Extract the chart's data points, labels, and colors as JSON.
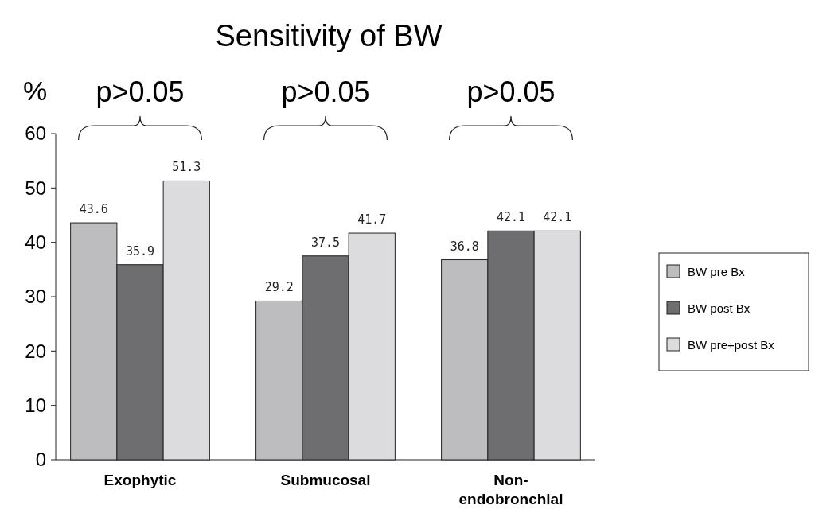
{
  "chart_data": {
    "type": "bar",
    "title": "Sensitivity of BW",
    "ylabel": "%",
    "categories": [
      "Exophytic",
      "Submucosal",
      "Non-endobronchial"
    ],
    "series": [
      {
        "name": "BW pre Bx",
        "color": "#bdbdbf",
        "values": [
          43.6,
          29.2,
          36.8
        ]
      },
      {
        "name": "BW post Bx",
        "color": "#6e6e70",
        "values": [
          35.9,
          37.5,
          42.1
        ]
      },
      {
        "name": "BW pre+post Bx",
        "color": "#dcdcde",
        "values": [
          51.3,
          41.7,
          42.1
        ]
      }
    ],
    "ylim": [
      0,
      60
    ],
    "yticks": [
      0,
      10,
      20,
      30,
      40,
      50,
      60
    ],
    "data_labels": true,
    "grid": false,
    "legend": "right",
    "annotations": [
      "p>0.05",
      "p>0.05",
      "p>0.05"
    ]
  }
}
